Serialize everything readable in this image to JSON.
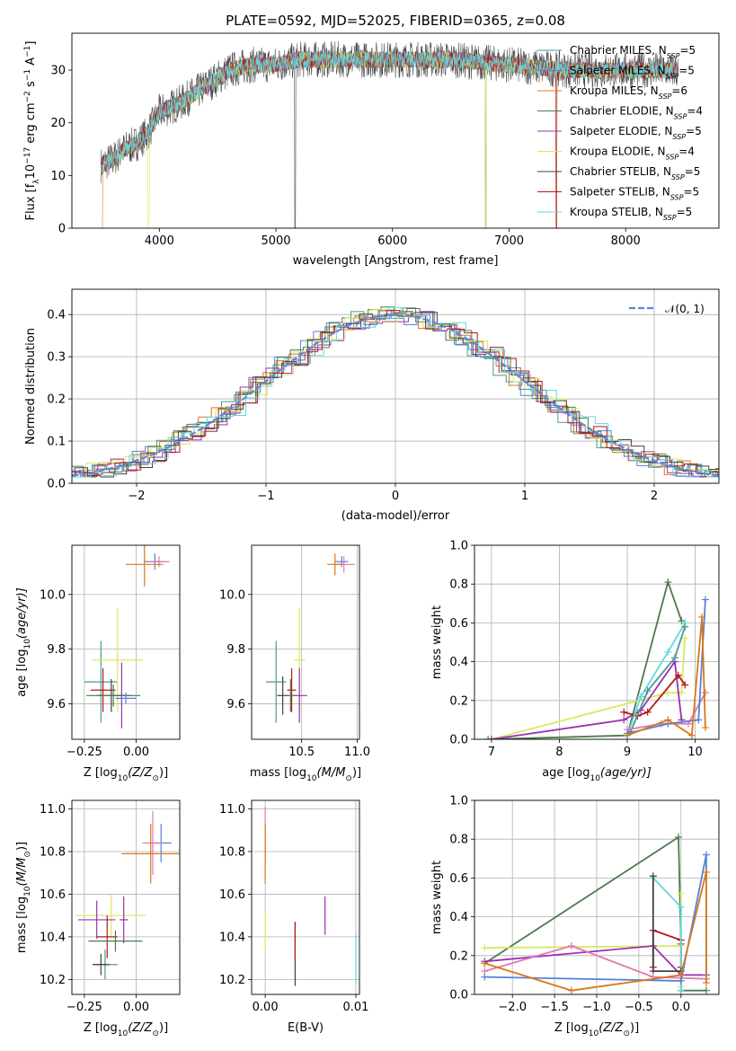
{
  "chart_data": [
    {
      "id": "spectrum",
      "type": "line",
      "title": "PLATE=0592, MJD=52025, FIBERID=0365, z=0.08",
      "xlabel": "wavelength [Angstrom, rest frame]",
      "ylabel": "Flux [f",
      "ylabel_parts": [
        "Flux [f",
        "λ",
        "10",
        "−17",
        " erg cm",
        "−2",
        " s",
        "−1",
        " A",
        "−1",
        "]"
      ],
      "xlim": [
        3250,
        8800
      ],
      "ylim": [
        0,
        37
      ],
      "xticks": [
        4000,
        5000,
        6000,
        7000,
        8000
      ],
      "yticks": [
        0,
        10,
        20,
        30
      ],
      "xrange": [
        3500,
        8450
      ],
      "ydata_x": [
        3500,
        3600,
        3700,
        3800,
        3900,
        4000,
        4200,
        4400,
        4600,
        4800,
        5000,
        5200,
        5500,
        6000,
        6500,
        7000,
        7500,
        8000,
        8450
      ],
      "ydata_y": [
        12,
        13,
        15,
        16,
        18,
        22,
        24,
        27,
        30,
        31,
        31,
        32,
        32,
        32,
        32,
        31,
        30,
        30,
        30
      ],
      "legend_position": "right",
      "series": [
        {
          "name": "Chabrier MILES, N",
          "nssp": "=5",
          "color": "#4a9a8e"
        },
        {
          "name": "Salpeter MILES, N",
          "nssp": "=5",
          "color": "#5580d8"
        },
        {
          "name": "Kroupa MILES, N",
          "nssp": "=6",
          "color": "#d87818"
        },
        {
          "name": "Chabrier ELODIE, N",
          "nssp": "=4",
          "color": "#4d7a4d"
        },
        {
          "name": "Salpeter ELODIE, N",
          "nssp": "=5",
          "color": "#9b30b0"
        },
        {
          "name": "Kroupa ELODIE, N",
          "nssp": "=4",
          "color": "#d8e860"
        },
        {
          "name": "Chabrier STELIB, N",
          "nssp": "=5",
          "color": "#404040"
        },
        {
          "name": "Salpeter STELIB, N",
          "nssp": "=5",
          "color": "#b01818"
        },
        {
          "name": "Kroupa STELIB, N",
          "nssp": "=5",
          "color": "#60d8e0"
        }
      ],
      "nssp_sub": "SSP"
    },
    {
      "id": "residual-hist",
      "type": "line",
      "xlabel": "(data-model)/error",
      "ylabel": "Normed distribution",
      "xlim": [
        -2.5,
        2.5
      ],
      "ylim": [
        0,
        0.46
      ],
      "xticks": [
        -2,
        -1,
        0,
        1,
        2
      ],
      "yticks": [
        0.0,
        0.1,
        0.2,
        0.3,
        0.4
      ],
      "grid": true,
      "legend_position": "top-right",
      "legend": "𝒩(0, 1)",
      "normal_curve": {
        "mean": 0,
        "sigma": 1,
        "color": "#5a88d8"
      }
    },
    {
      "id": "age-vs-z",
      "type": "scatter",
      "xlabel": "Z [log",
      "ylabel": "age  [log",
      "xlim": [
        -0.31,
        0.21
      ],
      "ylim": [
        9.47,
        10.18
      ],
      "xticks": [
        -0.25,
        0.0
      ],
      "yticks": [
        9.6,
        9.8,
        10.0
      ],
      "grid": true,
      "points": [
        {
          "x": 0.09,
          "y": 10.12,
          "xerr": 0.05,
          "yerr": 0.03,
          "color": "#5580d8"
        },
        {
          "x": 0.11,
          "y": 10.12,
          "xerr": 0.05,
          "yerr": 0.02,
          "color": "#e078b0"
        },
        {
          "x": 0.04,
          "y": 10.11,
          "xerr": 0.09,
          "yerr": 0.08,
          "color": "#d87818"
        },
        {
          "x": -0.17,
          "y": 9.68,
          "xerr": 0.08,
          "yerr": 0.15,
          "color": "#4a9a8e"
        },
        {
          "x": -0.09,
          "y": 9.76,
          "xerr": 0.12,
          "yerr": 0.19,
          "color": "#d8e860"
        },
        {
          "x": -0.07,
          "y": 9.63,
          "xerr": 0.05,
          "yerr": 0.12,
          "color": "#9b30b0"
        },
        {
          "x": -0.16,
          "y": 9.65,
          "xerr": 0.06,
          "yerr": 0.08,
          "color": "#b01818"
        },
        {
          "x": -0.12,
          "y": 9.63,
          "xerr": 0.07,
          "yerr": 0.06,
          "color": "#404040"
        },
        {
          "x": -0.11,
          "y": 9.63,
          "xerr": 0.13,
          "yerr": 0.04,
          "color": "#4d7a4d"
        },
        {
          "x": -0.05,
          "y": 9.62,
          "xerr": 0.05,
          "yerr": 0.02,
          "color": "#5580d8"
        }
      ]
    },
    {
      "id": "age-vs-mass",
      "type": "scatter",
      "xlabel": "mass [log",
      "xlim": [
        10.05,
        11.02
      ],
      "ylim": [
        9.47,
        10.18
      ],
      "xticks": [
        10.5,
        11.0
      ],
      "yticks": [
        9.6,
        9.8,
        10.0
      ],
      "grid": true,
      "points": [
        {
          "x": 10.86,
          "y": 10.12,
          "xerr": 0.06,
          "yerr": 0.02,
          "color": "#5580d8"
        },
        {
          "x": 10.88,
          "y": 10.11,
          "xerr": 0.1,
          "yerr": 0.03,
          "color": "#e078b0"
        },
        {
          "x": 10.8,
          "y": 10.11,
          "xerr": 0.07,
          "yerr": 0.04,
          "color": "#d87818"
        },
        {
          "x": 10.27,
          "y": 9.68,
          "xerr": 0.09,
          "yerr": 0.15,
          "color": "#4a9a8e"
        },
        {
          "x": 10.48,
          "y": 9.76,
          "xerr": 0.05,
          "yerr": 0.19,
          "color": "#d8e860"
        },
        {
          "x": 10.48,
          "y": 9.63,
          "xerr": 0.07,
          "yerr": 0.1,
          "color": "#9b30b0"
        },
        {
          "x": 10.41,
          "y": 9.65,
          "xerr": 0.04,
          "yerr": 0.08,
          "color": "#b01818"
        },
        {
          "x": 10.33,
          "y": 9.63,
          "xerr": 0.05,
          "yerr": 0.07,
          "color": "#404040"
        },
        {
          "x": 10.4,
          "y": 9.63,
          "xerr": 0.06,
          "yerr": 0.06,
          "color": "#4d7a4d"
        }
      ]
    },
    {
      "id": "mass-weight-vs-age",
      "type": "line",
      "xlabel": "age  [log",
      "ylabel": "mass weight",
      "xlim": [
        6.75,
        10.35
      ],
      "ylim": [
        0,
        1.0
      ],
      "xticks": [
        7,
        8,
        9,
        10
      ],
      "yticks": [
        0.0,
        0.2,
        0.4,
        0.6,
        0.8,
        1.0
      ],
      "grid": true,
      "series": [
        {
          "color": "#4d7a4d",
          "x": [
            6.95,
            9.0,
            9.6,
            9.8
          ],
          "y": [
            0.0,
            0.02,
            0.81,
            0.61
          ]
        },
        {
          "color": "#d8e860",
          "x": [
            7.0,
            9.6,
            9.8,
            9.85
          ],
          "y": [
            0.0,
            0.24,
            0.24,
            0.52
          ]
        },
        {
          "color": "#9b30b0",
          "x": [
            7.0,
            8.95,
            9.2,
            9.7,
            9.8
          ],
          "y": [
            0.0,
            0.1,
            0.15,
            0.4,
            0.1
          ]
        },
        {
          "color": "#b01818",
          "x": [
            8.95,
            9.15,
            9.3,
            9.75,
            9.85
          ],
          "y": [
            0.14,
            0.12,
            0.14,
            0.33,
            0.28
          ]
        },
        {
          "color": "#60d8e0",
          "x": [
            9.0,
            9.2,
            9.6,
            9.85
          ],
          "y": [
            0.02,
            0.22,
            0.45,
            0.6
          ]
        },
        {
          "color": "#4a9a8e",
          "x": [
            9.05,
            9.3,
            9.7,
            9.85
          ],
          "y": [
            0.04,
            0.25,
            0.42,
            0.58
          ]
        },
        {
          "color": "#e078b0",
          "x": [
            9.0,
            9.5,
            9.9,
            10.15
          ],
          "y": [
            0.05,
            0.08,
            0.08,
            0.24
          ]
        },
        {
          "color": "#5580d8",
          "x": [
            9.0,
            9.6,
            10.05,
            10.15
          ],
          "y": [
            0.03,
            0.08,
            0.1,
            0.72
          ]
        },
        {
          "color": "#d87818",
          "x": [
            9.0,
            9.6,
            9.95,
            10.1,
            10.15
          ],
          "y": [
            0.02,
            0.1,
            0.02,
            0.63,
            0.06
          ]
        }
      ]
    },
    {
      "id": "mass-vs-z",
      "type": "scatter",
      "xlabel": "Z [log",
      "ylabel": "mass [log",
      "xlim": [
        -0.31,
        0.21
      ],
      "ylim": [
        10.13,
        11.04
      ],
      "xticks": [
        -0.25,
        0.0
      ],
      "yticks": [
        10.2,
        10.4,
        10.6,
        10.8,
        11.0
      ],
      "grid": true,
      "points": [
        {
          "x": 0.12,
          "y": 10.84,
          "xerr": 0.05,
          "yerr": 0.09,
          "color": "#5580d8"
        },
        {
          "x": 0.08,
          "y": 10.84,
          "xerr": 0.05,
          "yerr": 0.15,
          "color": "#e078b0"
        },
        {
          "x": 0.07,
          "y": 10.79,
          "xerr": 0.14,
          "yerr": 0.14,
          "color": "#d87818"
        },
        {
          "x": -0.12,
          "y": 10.5,
          "xerr": 0.17,
          "yerr": 0.1,
          "color": "#d8e860"
        },
        {
          "x": -0.19,
          "y": 10.48,
          "xerr": 0.09,
          "yerr": 0.09,
          "color": "#9b30b0"
        },
        {
          "x": -0.06,
          "y": 10.48,
          "xerr": 0.02,
          "yerr": 0.11,
          "color": "#9b30b0"
        },
        {
          "x": -0.14,
          "y": 10.4,
          "xerr": 0.05,
          "yerr": 0.1,
          "color": "#b01818"
        },
        {
          "x": -0.1,
          "y": 10.38,
          "xerr": 0.13,
          "yerr": 0.05,
          "color": "#4d7a4d"
        },
        {
          "x": -0.15,
          "y": 10.27,
          "xerr": 0.06,
          "yerr": 0.07,
          "color": "#4a9a8e"
        },
        {
          "x": -0.17,
          "y": 10.27,
          "xerr": 0.04,
          "yerr": 0.05,
          "color": "#404040"
        }
      ]
    },
    {
      "id": "mass-vs-ebv",
      "type": "scatter",
      "xlabel": "E(B-V)",
      "xlim": [
        -0.0015,
        0.0104
      ],
      "ylim": [
        10.13,
        11.04
      ],
      "xticks": [
        0.0,
        0.01
      ],
      "yticks": [
        10.2,
        10.4,
        10.6,
        10.8,
        11.0
      ],
      "xtick_labels": [
        "0.00",
        "0.01"
      ],
      "grid": true,
      "points": [
        {
          "x": 0.0,
          "y": 10.88,
          "yerr": 0.13,
          "color": "#e078b0"
        },
        {
          "x": 0.0,
          "y": 10.79,
          "yerr": 0.14,
          "color": "#d87818"
        },
        {
          "x": 0.0,
          "y": 10.42,
          "yerr": 0.11,
          "color": "#d8e860"
        },
        {
          "x": 0.0033,
          "y": 10.32,
          "yerr": 0.15,
          "color": "#404040"
        },
        {
          "x": 0.0033,
          "y": 10.38,
          "yerr": 0.09,
          "color": "#b01818"
        },
        {
          "x": 0.0066,
          "y": 10.5,
          "yerr": 0.09,
          "color": "#9b30b0"
        },
        {
          "x": 0.01,
          "y": 10.3,
          "yerr": 0.12,
          "color": "#60d8e0"
        }
      ]
    },
    {
      "id": "mass-weight-vs-z",
      "type": "line",
      "xlabel": "Z [log",
      "ylabel": "mass weight",
      "xlim": [
        -2.45,
        0.45
      ],
      "ylim": [
        0,
        1.0
      ],
      "xticks": [
        -2.0,
        -1.5,
        -1.0,
        -0.5,
        0.0
      ],
      "yticks": [
        0.0,
        0.2,
        0.4,
        0.6,
        0.8,
        1.0
      ],
      "xtick_labels": [
        "−2.0",
        "−1.5",
        "−1.0",
        "−0.5",
        "0.0"
      ],
      "grid": true,
      "series": [
        {
          "color": "#4d7a4d",
          "x": [
            -2.33,
            -0.03,
            0.0,
            0.0,
            0.3
          ],
          "y": [
            0.16,
            0.81,
            0.26,
            0.02,
            0.02
          ]
        },
        {
          "color": "#d8e860",
          "x": [
            -2.33,
            0.0,
            0.0,
            0.0
          ],
          "y": [
            0.24,
            0.25,
            0.52,
            0.04
          ]
        },
        {
          "color": "#9b30b0",
          "x": [
            -2.33,
            -0.33,
            0.0,
            0.3
          ],
          "y": [
            0.17,
            0.25,
            0.1,
            0.1
          ]
        },
        {
          "color": "#b01818",
          "x": [
            -0.33,
            -0.33,
            0.0,
            0.0
          ],
          "y": [
            0.14,
            0.33,
            0.28,
            0.14
          ]
        },
        {
          "color": "#60d8e0",
          "x": [
            -0.33,
            0.0,
            0.0
          ],
          "y": [
            0.6,
            0.45,
            0.02
          ]
        },
        {
          "color": "#404040",
          "x": [
            -0.33,
            -0.33,
            0.0
          ],
          "y": [
            0.61,
            0.12,
            0.12
          ]
        },
        {
          "color": "#e078b0",
          "x": [
            -2.33,
            -1.3,
            -0.33,
            0.3
          ],
          "y": [
            0.12,
            0.25,
            0.09,
            0.08
          ]
        },
        {
          "color": "#5580d8",
          "x": [
            -2.33,
            0.0,
            0.3,
            0.3
          ],
          "y": [
            0.09,
            0.07,
            0.72,
            0.1
          ]
        },
        {
          "color": "#d87818",
          "x": [
            -2.33,
            -1.3,
            0.0,
            0.3,
            0.3
          ],
          "y": [
            0.16,
            0.02,
            0.1,
            0.63,
            0.06
          ]
        }
      ]
    }
  ],
  "labels": {
    "subscript_sun": "⊙",
    "log10": "10",
    "age_unit": "(age/yr)]",
    "z_unit": "(Z/Z",
    "mass_unit": "(M/M"
  }
}
